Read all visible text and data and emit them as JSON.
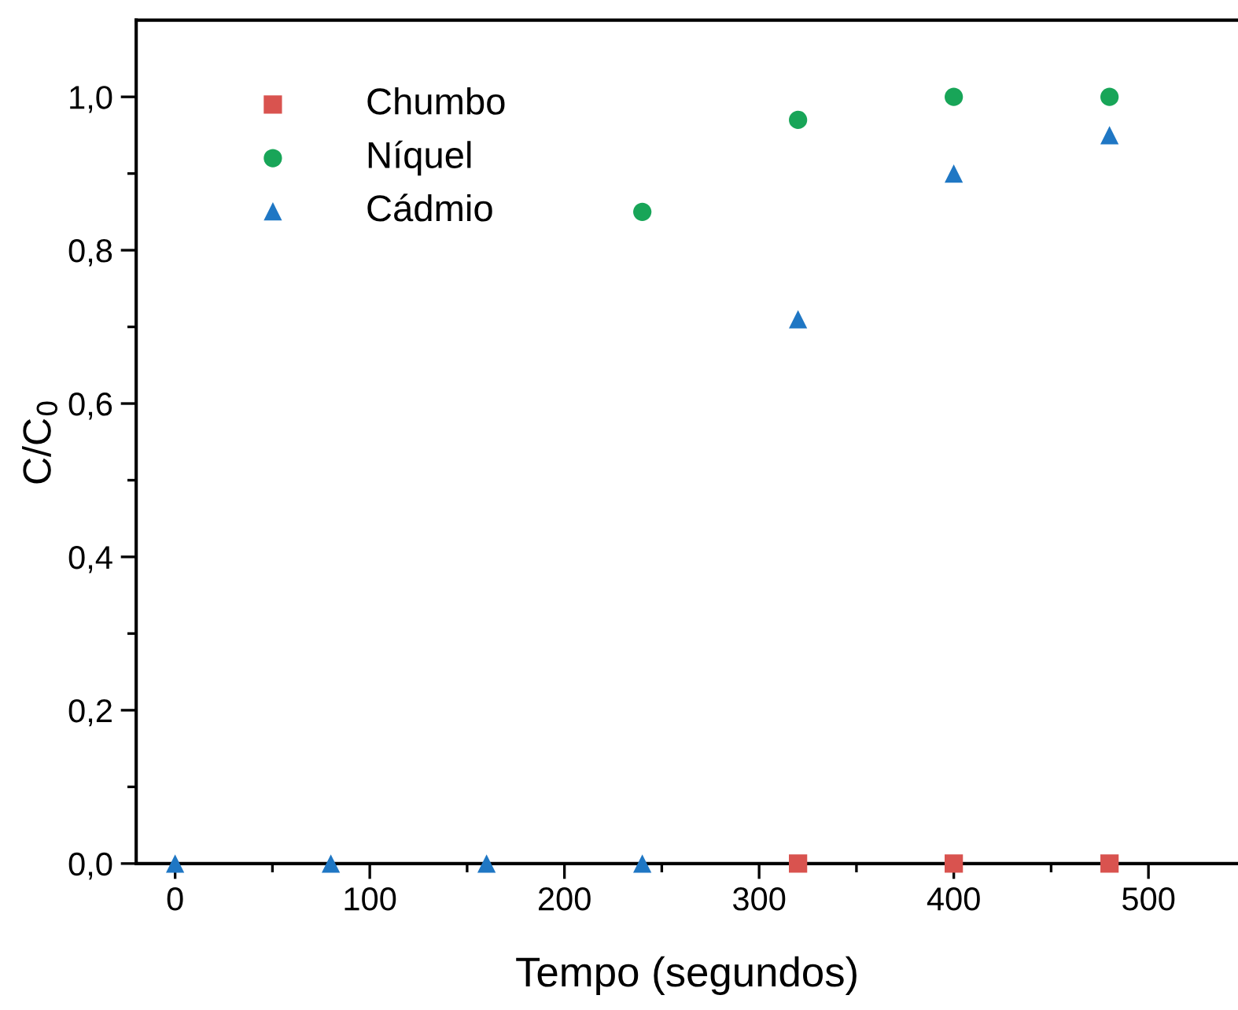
{
  "chart_data": {
    "type": "scatter",
    "xlabel": "Tempo (segundos)",
    "ylabel": "C/C$_{0}$",
    "x": [
      0,
      80,
      160,
      240,
      320,
      400,
      480
    ],
    "series": [
      {
        "name": "Chumbo",
        "color": "#d9534f",
        "marker": "square",
        "values": [
          null,
          null,
          null,
          null,
          0,
          0,
          0
        ]
      },
      {
        "name": "Níquel",
        "color": "#18a558",
        "marker": "circle",
        "values": [
          null,
          null,
          null,
          0.85,
          0.97,
          1.0,
          1.0
        ]
      },
      {
        "name": "Cádmio",
        "color": "#1f77c4",
        "marker": "triangle",
        "values": [
          0,
          0,
          0,
          0,
          0.71,
          0.9,
          0.95
        ]
      }
    ],
    "xlim": [
      -20,
      546
    ],
    "ylim": [
      0,
      1.1
    ],
    "xticks": [
      0,
      100,
      200,
      300,
      400,
      500
    ],
    "yticks": [
      {
        "value": 0,
        "label": "0,0"
      },
      {
        "value": 0.2,
        "label": "0,2"
      },
      {
        "value": 0.4,
        "label": "0,4"
      },
      {
        "value": 0.6,
        "label": "0,6"
      },
      {
        "value": 0.8,
        "label": "0,8"
      },
      {
        "value": 1.0,
        "label": "1,0"
      }
    ],
    "grid": false,
    "legend": "top left"
  }
}
